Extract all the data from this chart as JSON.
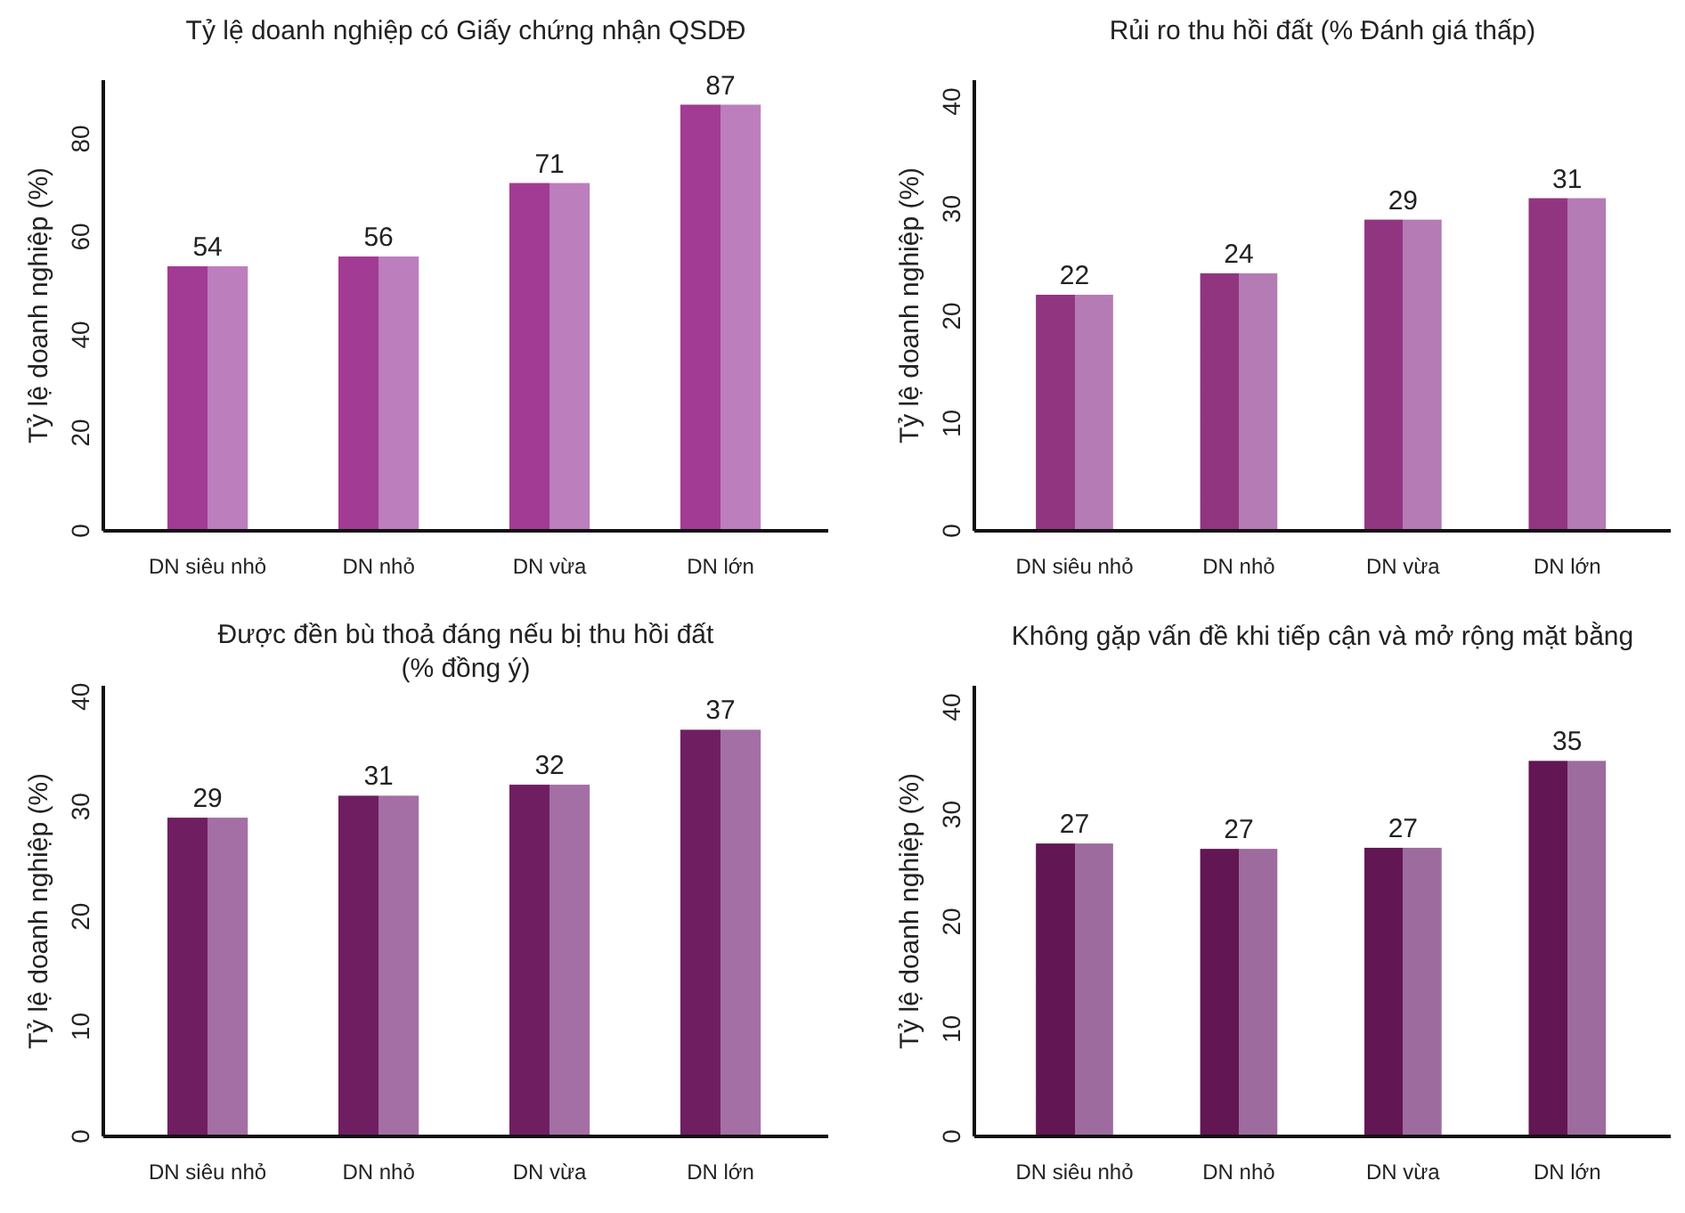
{
  "chart_data": [
    {
      "type": "bar",
      "title": "Tỷ lệ doanh nghiệp có Giấy chứng nhận QSDĐ",
      "ylabel": "Tỷ lệ doanh nghiệp (%)",
      "categories": [
        "DN siêu nhỏ",
        "DN nhỏ",
        "DN vừa",
        "DN lớn"
      ],
      "values": [
        54,
        56,
        71,
        87
      ],
      "color": "#a23b93",
      "ylim": [
        0,
        92
      ],
      "yticks": [
        0,
        20,
        40,
        60,
        80
      ],
      "data_labels": true
    },
    {
      "type": "bar",
      "title": "Rủi ro thu hồi đất (% Đánh giá thấp)",
      "ylabel": "Tỷ lệ doanh nghiệp (%)",
      "categories": [
        "DN siêu nhỏ",
        "DN nhỏ",
        "DN vừa",
        "DN lớn"
      ],
      "values": [
        22,
        24,
        29,
        31
      ],
      "color": "#913581",
      "ylim": [
        0,
        42
      ],
      "yticks": [
        0,
        10,
        20,
        30,
        40
      ],
      "data_labels": true
    },
    {
      "type": "bar",
      "title": "Được đền bù thoả đáng nếu bị thu hồi đất\n(% đồng ý)",
      "ylabel": "Tỷ lệ doanh nghiệp (%)",
      "categories": [
        "DN siêu nhỏ",
        "DN nhỏ",
        "DN vừa",
        "DN lớn"
      ],
      "values": [
        29,
        31,
        32,
        37
      ],
      "color": "#6f1e62",
      "ylim": [
        0,
        41
      ],
      "yticks": [
        0,
        10,
        20,
        30,
        40
      ],
      "data_labels": true
    },
    {
      "type": "bar",
      "title": "Không gặp vấn đề khi tiếp cận và mở rộng mặt bằng",
      "ylabel": "Tỷ lệ doanh nghiệp (%)",
      "categories": [
        "DN siêu nhỏ",
        "DN nhỏ",
        "DN vừa",
        "DN lớn"
      ],
      "values": [
        27.3,
        26.8,
        26.9,
        35
      ],
      "value_labels": [
        "27",
        "27",
        "27",
        "35"
      ],
      "color": "#621653",
      "ylim": [
        0,
        42
      ],
      "yticks": [
        0,
        10,
        20,
        30,
        40
      ]
    }
  ]
}
